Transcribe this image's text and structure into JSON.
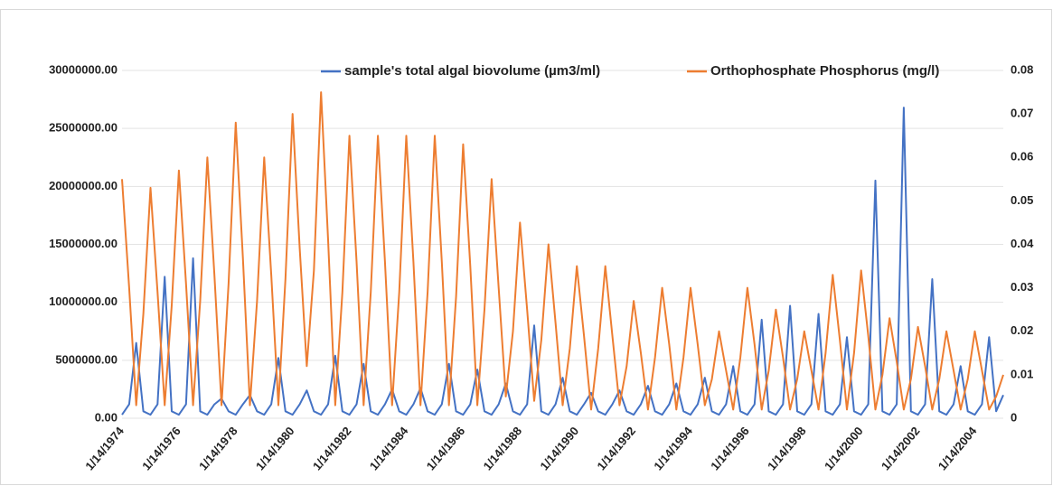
{
  "chart_data": {
    "type": "line",
    "categories": [
      "1/14/1974",
      null,
      null,
      null,
      null,
      null,
      null,
      null,
      "1/14/1976",
      null,
      null,
      null,
      null,
      null,
      null,
      null,
      "1/14/1978",
      null,
      null,
      null,
      null,
      null,
      null,
      null,
      "1/14/1980",
      null,
      null,
      null,
      null,
      null,
      null,
      null,
      "1/14/1982",
      null,
      null,
      null,
      null,
      null,
      null,
      null,
      "1/14/1984",
      null,
      null,
      null,
      null,
      null,
      null,
      null,
      "1/14/1986",
      null,
      null,
      null,
      null,
      null,
      null,
      null,
      "1/14/1988",
      null,
      null,
      null,
      null,
      null,
      null,
      null,
      "1/14/1990",
      null,
      null,
      null,
      null,
      null,
      null,
      null,
      "1/14/1992",
      null,
      null,
      null,
      null,
      null,
      null,
      null,
      "1/14/1994",
      null,
      null,
      null,
      null,
      null,
      null,
      null,
      "1/14/1996",
      null,
      null,
      null,
      null,
      null,
      null,
      null,
      "1/14/1998",
      null,
      null,
      null,
      null,
      null,
      null,
      null,
      "1/14/2000",
      null,
      null,
      null,
      null,
      null,
      null,
      null,
      "1/14/2002",
      null,
      null,
      null,
      null,
      null,
      null,
      null,
      "1/14/2004",
      null,
      null,
      null,
      null
    ],
    "series": [
      {
        "name": "sample's total algal biovolume (µm3/ml)",
        "color": "#4472c4",
        "axis": "y",
        "values": [
          300000,
          1200000,
          6500000,
          600000,
          300000,
          1200000,
          12200000,
          600000,
          300000,
          1200000,
          13800000,
          600000,
          300000,
          1200000,
          1700000,
          600000,
          300000,
          1200000,
          2000000,
          600000,
          300000,
          1200000,
          5200000,
          600000,
          300000,
          1200000,
          2400000,
          600000,
          300000,
          1200000,
          5400000,
          600000,
          300000,
          1200000,
          4700000,
          600000,
          300000,
          1200000,
          2500000,
          600000,
          300000,
          1200000,
          2600000,
          600000,
          300000,
          1200000,
          4700000,
          600000,
          300000,
          1200000,
          4200000,
          600000,
          300000,
          1200000,
          3000000,
          600000,
          300000,
          1200000,
          8000000,
          600000,
          300000,
          1200000,
          3500000,
          600000,
          300000,
          1200000,
          2200000,
          600000,
          300000,
          1200000,
          2400000,
          600000,
          300000,
          1200000,
          2800000,
          600000,
          300000,
          1200000,
          3000000,
          600000,
          300000,
          1200000,
          3500000,
          600000,
          300000,
          1200000,
          4500000,
          600000,
          300000,
          1200000,
          8500000,
          600000,
          300000,
          1200000,
          9700000,
          600000,
          300000,
          1200000,
          9000000,
          600000,
          300000,
          1200000,
          7000000,
          600000,
          300000,
          1200000,
          20500000,
          600000,
          300000,
          1200000,
          26800000,
          600000,
          300000,
          1200000,
          12000000,
          600000,
          300000,
          1200000,
          4500000,
          600000,
          300000,
          1200000,
          7000000,
          600000,
          2000000
        ]
      },
      {
        "name": "Orthophosphate Phosphorus (mg/l)",
        "color": "#ed7d31",
        "axis": "y2",
        "values": [
          0.055,
          0.03,
          0.003,
          0.024,
          0.053,
          0.029,
          0.003,
          0.026,
          0.057,
          0.031,
          0.003,
          0.027,
          0.06,
          0.033,
          0.003,
          0.031,
          0.068,
          0.037,
          0.003,
          0.027,
          0.06,
          0.033,
          0.003,
          0.032,
          0.07,
          0.039,
          0.012,
          0.034,
          0.075,
          0.041,
          0.003,
          0.029,
          0.065,
          0.036,
          0.003,
          0.029,
          0.065,
          0.036,
          0.003,
          0.029,
          0.065,
          0.036,
          0.003,
          0.029,
          0.065,
          0.036,
          0.003,
          0.028,
          0.063,
          0.035,
          0.003,
          0.025,
          0.055,
          0.03,
          0.005,
          0.02,
          0.045,
          0.025,
          0.004,
          0.018,
          0.04,
          0.022,
          0.003,
          0.016,
          0.035,
          0.019,
          0.002,
          0.016,
          0.035,
          0.019,
          0.003,
          0.012,
          0.027,
          0.015,
          0.002,
          0.014,
          0.03,
          0.017,
          0.002,
          0.014,
          0.03,
          0.017,
          0.003,
          0.009,
          0.02,
          0.011,
          0.002,
          0.014,
          0.03,
          0.017,
          0.002,
          0.011,
          0.025,
          0.014,
          0.002,
          0.009,
          0.02,
          0.011,
          0.002,
          0.015,
          0.033,
          0.018,
          0.002,
          0.015,
          0.034,
          0.019,
          0.002,
          0.01,
          0.023,
          0.013,
          0.002,
          0.009,
          0.021,
          0.012,
          0.002,
          0.009,
          0.02,
          0.011,
          0.002,
          0.009,
          0.02,
          0.011,
          0.002,
          0.005,
          0.01
        ]
      }
    ],
    "ylim": [
      0,
      30000000
    ],
    "yticks": [
      {
        "value": 0,
        "label": "0.00"
      },
      {
        "value": 5000000,
        "label": "5000000.00"
      },
      {
        "value": 10000000,
        "label": "10000000.00"
      },
      {
        "value": 15000000,
        "label": "15000000.00"
      },
      {
        "value": 20000000,
        "label": "20000000.00"
      },
      {
        "value": 25000000,
        "label": "25000000.00"
      },
      {
        "value": 30000000,
        "label": "30000000.00"
      }
    ],
    "y2lim": [
      0,
      0.08
    ],
    "y2ticks": [
      0,
      0.01,
      0.02,
      0.03,
      0.04,
      0.05,
      0.06,
      0.07,
      0.08
    ],
    "grid": true,
    "legend": "top"
  }
}
